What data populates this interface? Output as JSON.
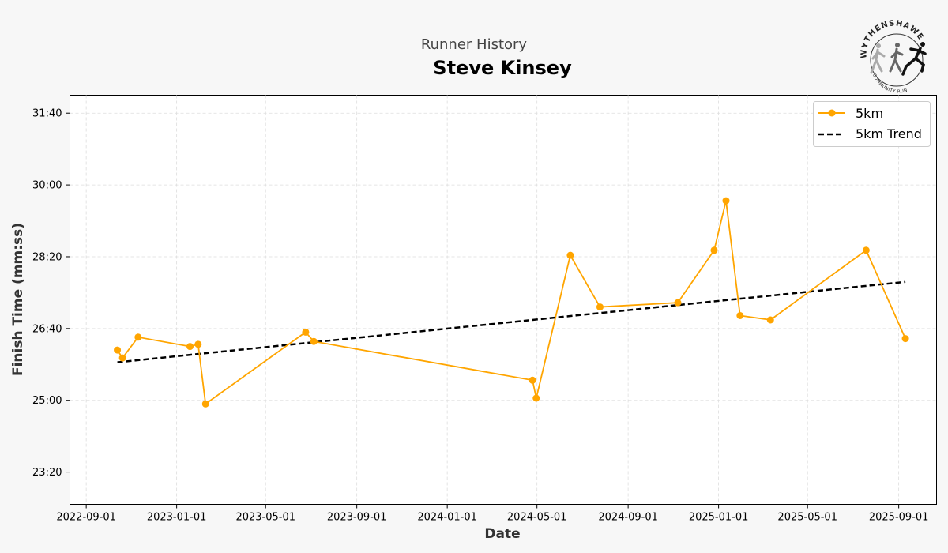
{
  "header": {
    "subtitle": "Runner History",
    "title": "Steve Kinsey"
  },
  "logo": {
    "top_text": "WYTHENSHAWE",
    "bottom_text": "COMMUNITY RUN",
    "icon": "runners-logo-icon"
  },
  "colors": {
    "series": "#FFA500",
    "trend": "#000000",
    "background": "#f7f7f7",
    "plot_background": "#ffffff",
    "grid": "#dddddd"
  },
  "chart_data": {
    "type": "line",
    "xlabel": "Date",
    "ylabel": "Finish Time (mm:ss)",
    "x_ticks": [
      "2022-09-01",
      "2023-01-01",
      "2023-05-01",
      "2023-09-01",
      "2024-01-01",
      "2024-05-01",
      "2024-09-01",
      "2025-01-01",
      "2025-05-01",
      "2025-09-01"
    ],
    "y_ticks": [
      "23:20",
      "25:00",
      "26:40",
      "28:20",
      "30:00",
      "31:40"
    ],
    "xlim": [
      "2022-08-10",
      "2025-10-22"
    ],
    "ylim": [
      "22:35",
      "32:05"
    ],
    "grid": true,
    "legend_position": "top-right",
    "series": [
      {
        "name": "5km",
        "style": "line-with-markers",
        "points": [
          {
            "x": "2022-10-13",
            "y": "26:10"
          },
          {
            "x": "2022-10-20",
            "y": "25:59"
          },
          {
            "x": "2022-11-10",
            "y": "26:28"
          },
          {
            "x": "2023-01-19",
            "y": "26:15"
          },
          {
            "x": "2023-01-30",
            "y": "26:18"
          },
          {
            "x": "2023-02-09",
            "y": "24:55"
          },
          {
            "x": "2023-06-24",
            "y": "26:35"
          },
          {
            "x": "2023-07-05",
            "y": "26:22"
          },
          {
            "x": "2024-04-25",
            "y": "25:28"
          },
          {
            "x": "2024-04-30",
            "y": "25:03"
          },
          {
            "x": "2024-06-15",
            "y": "28:22"
          },
          {
            "x": "2024-07-25",
            "y": "27:10"
          },
          {
            "x": "2024-11-07",
            "y": "27:16"
          },
          {
            "x": "2024-12-26",
            "y": "28:29"
          },
          {
            "x": "2025-01-11",
            "y": "29:38"
          },
          {
            "x": "2025-01-30",
            "y": "26:58"
          },
          {
            "x": "2025-03-12",
            "y": "26:52"
          },
          {
            "x": "2025-07-19",
            "y": "28:29"
          },
          {
            "x": "2025-09-10",
            "y": "26:26"
          }
        ]
      },
      {
        "name": "5km Trend",
        "style": "dashed",
        "points": [
          {
            "x": "2022-10-13",
            "y": "25:53"
          },
          {
            "x": "2025-09-10",
            "y": "27:45"
          }
        ]
      }
    ]
  }
}
